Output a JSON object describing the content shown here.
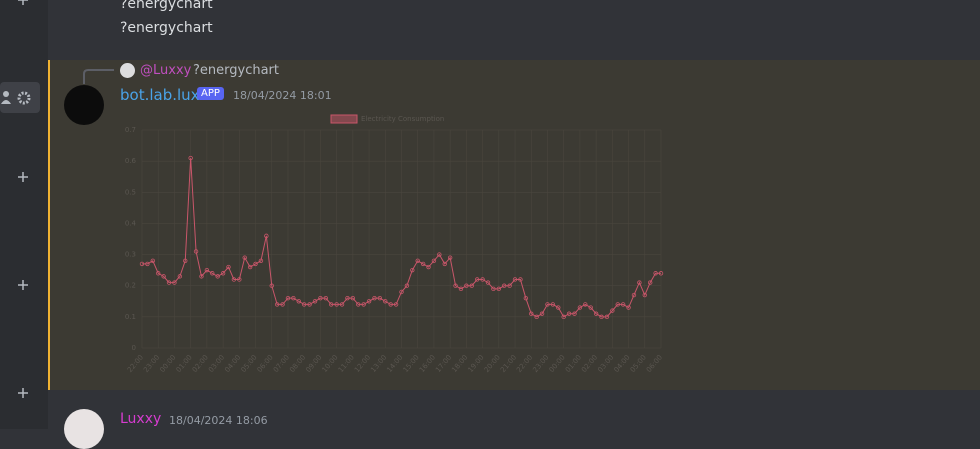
{
  "messages": [
    {
      "text": "?energychart"
    },
    {
      "text": "?energychart"
    }
  ],
  "reply": {
    "author": "@Luxxy",
    "text": "?energychart"
  },
  "bot": {
    "author": "bot.lab.lux",
    "badge": "APP",
    "timestamp": "18/04/2024 18:01"
  },
  "chart_data": {
    "type": "line",
    "categories": [
      "22:00",
      null,
      null,
      "23:00",
      null,
      null,
      "00:00",
      null,
      null,
      "01:00",
      null,
      null,
      "02:00",
      null,
      null,
      "03:00",
      null,
      null,
      "04:00",
      null,
      null,
      "05:00",
      null,
      null,
      "06:00",
      null,
      null,
      "07:00",
      null,
      null,
      "08:00",
      null,
      null,
      "09:00",
      null,
      null,
      "10:00",
      null,
      null,
      "11:00",
      null,
      null,
      "12:00",
      null,
      null,
      "13:00",
      null,
      null,
      "14:00",
      null,
      null,
      "15:00",
      null,
      null,
      "16:00",
      null,
      null,
      "17:00",
      null,
      null,
      "18:00",
      null,
      null,
      "19:00",
      null,
      null,
      "20:00",
      null,
      null,
      "21:00",
      null,
      null,
      "22:00",
      null,
      null,
      "23:00",
      null,
      null,
      "00:00",
      null,
      null,
      "01:00",
      null,
      null,
      "02:00",
      null,
      null,
      "03:00",
      null,
      null,
      "04:00",
      null,
      null,
      "05:00",
      null,
      null,
      "06:00"
    ],
    "series": [
      {
        "name": "Electricity Consumption",
        "color": "#c9566a",
        "values": [
          0.27,
          0.27,
          0.28,
          0.24,
          0.23,
          0.21,
          0.21,
          0.23,
          0.28,
          0.61,
          0.31,
          0.23,
          0.25,
          0.24,
          0.23,
          0.24,
          0.26,
          0.22,
          0.22,
          0.29,
          0.26,
          0.27,
          0.28,
          0.36,
          0.2,
          0.14,
          0.14,
          0.16,
          0.16,
          0.15,
          0.14,
          0.14,
          0.15,
          0.16,
          0.16,
          0.14,
          0.14,
          0.14,
          0.16,
          0.16,
          0.14,
          0.14,
          0.15,
          0.16,
          0.16,
          0.15,
          0.14,
          0.14,
          0.18,
          0.2,
          0.25,
          0.28,
          0.27,
          0.26,
          0.28,
          0.3,
          0.27,
          0.29,
          0.2,
          0.19,
          0.2,
          0.2,
          0.22,
          0.22,
          0.21,
          0.19,
          0.19,
          0.2,
          0.2,
          0.22,
          0.22,
          0.16,
          0.11,
          0.1,
          0.11,
          0.14,
          0.14,
          0.13,
          0.1,
          0.11,
          0.11,
          0.13,
          0.14,
          0.13,
          0.11,
          0.1,
          0.1,
          0.12,
          0.14,
          0.14,
          0.13,
          0.17,
          0.21,
          0.17,
          0.21,
          0.24,
          0.24
        ]
      }
    ],
    "ylim": [
      0,
      0.7
    ],
    "yticks": [
      0,
      0.1,
      0.2,
      0.3,
      0.4,
      0.5,
      0.6,
      0.7
    ],
    "grid": true,
    "legend": "top"
  },
  "next": {
    "author": "Luxxy",
    "timestamp": "18/04/2024 18:06"
  }
}
